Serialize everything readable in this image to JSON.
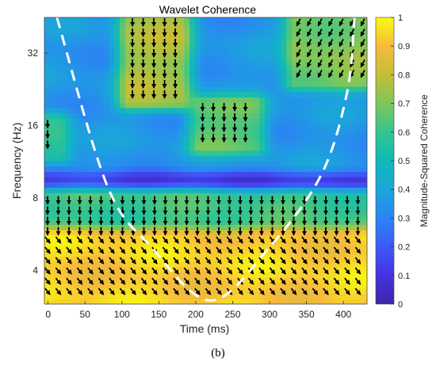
{
  "chart_data": {
    "type": "heatmap",
    "title": "Wavelet Coherence",
    "xlabel": "Time (ms)",
    "ylabel": "Frequency (Hz)",
    "xlim": [
      -5,
      432
    ],
    "ylim_hz": [
      2.9,
      45
    ],
    "y_scale": "log2",
    "x_ticks": [
      0,
      50,
      100,
      150,
      200,
      250,
      300,
      350,
      400
    ],
    "y_ticks": [
      4,
      8,
      16,
      32
    ],
    "colorbar": {
      "label": "Magnitude-Squared Coherence",
      "range": [
        0,
        1
      ],
      "ticks": [
        0,
        0.1,
        0.2,
        0.3,
        0.4,
        0.5,
        0.6,
        0.7,
        0.8,
        0.9,
        1
      ],
      "colormap": "parula"
    },
    "cone_of_influence": {
      "style": "white dashed",
      "points": [
        [
          12,
          45
        ],
        [
          80,
          9
        ],
        [
          140,
          5
        ],
        [
          220,
          3
        ],
        [
          300,
          5
        ],
        [
          370,
          10
        ],
        [
          405,
          22
        ],
        [
          415,
          45
        ]
      ]
    },
    "coherence_regions": [
      {
        "t": [
          -5,
          432
        ],
        "f": [
          2.9,
          5.6
        ],
        "coherence": 0.93,
        "phase_arrows": "down-right"
      },
      {
        "t": [
          -5,
          432
        ],
        "f": [
          5.6,
          8.2
        ],
        "coherence": 0.6,
        "phase_arrows": "down"
      },
      {
        "t": [
          -5,
          432
        ],
        "f": [
          8.2,
          9.5
        ],
        "coherence": 0.1
      },
      {
        "t": [
          110,
          180
        ],
        "f": [
          20,
          45
        ],
        "coherence": 0.75,
        "phase_arrows": "down"
      },
      {
        "t": [
          205,
          280
        ],
        "f": [
          13,
          20
        ],
        "coherence": 0.65,
        "phase_arrows": "down"
      },
      {
        "t": [
          335,
          432
        ],
        "f": [
          24,
          45
        ],
        "coherence": 0.7,
        "phase_arrows": "down-left"
      },
      {
        "t": [
          -5,
          15
        ],
        "f": [
          12,
          17
        ],
        "coherence": 0.6,
        "phase_arrows": "down"
      },
      {
        "t": [
          -5,
          432
        ],
        "f": [
          9.5,
          45
        ],
        "coherence": 0.35
      }
    ]
  },
  "caption": "(b)"
}
